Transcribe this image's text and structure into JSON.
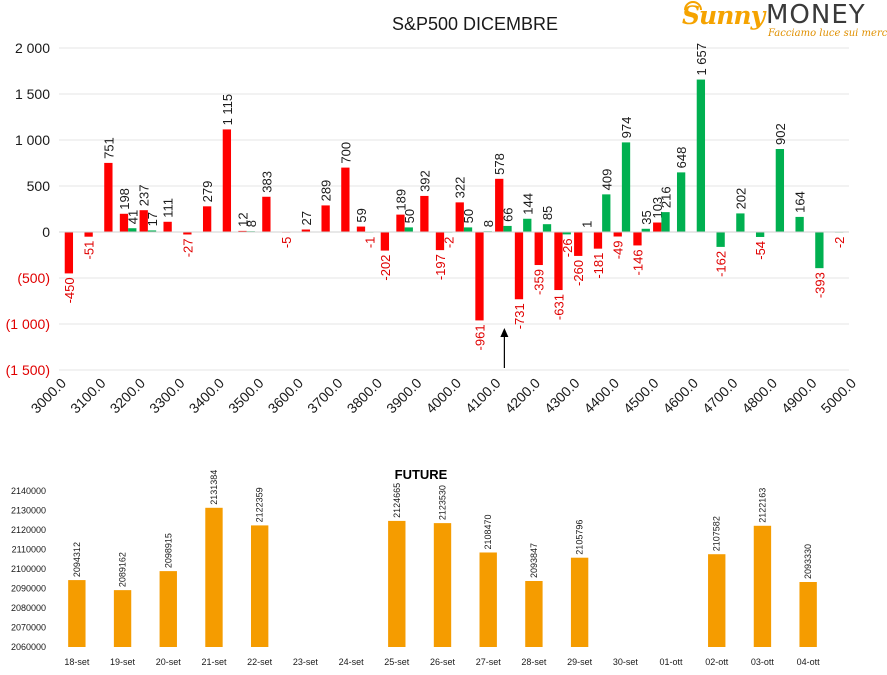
{
  "logo": {
    "brand_a": "Sunny",
    "brand_b": "MONEY",
    "tagline": "Facciamo luce sui mercati"
  },
  "colors": {
    "positive": "#00b050",
    "negative": "#ff0000",
    "future_bar": "#f59c00",
    "neg_label": "#e00000",
    "text": "#1a1a1a",
    "grid": "#e6e6e6"
  },
  "chart_data": [
    {
      "type": "bar",
      "title": "S&P500 DICEMBRE",
      "ylim": [
        -1500,
        2000
      ],
      "yticks": [
        -1500,
        -1000,
        -500,
        0,
        500,
        1000,
        1500,
        2000
      ],
      "ytick_labels": [
        "(1 500)",
        "(1 000)",
        "(500)",
        "0",
        "500",
        "1 000",
        "1 500",
        "2 000"
      ],
      "x_start": 3000,
      "x_step": 25,
      "xtick_labels": [
        "3000.0",
        "3100.0",
        "3200.0",
        "3300.0",
        "3400.0",
        "3500.0",
        "3600.0",
        "3700.0",
        "3800.0",
        "3900.0",
        "4000.0",
        "4100.0",
        "4200.0",
        "4300.0",
        "4400.0",
        "4500.0",
        "4600.0",
        "4700.0",
        "4800.0",
        "4900.0",
        "5000.0"
      ],
      "series": [
        {
          "color": "#ff0000",
          "values": [
            -450,
            -51,
            751,
            198,
            237,
            111,
            -27,
            279,
            1115,
            12,
            383,
            -5,
            27,
            289,
            700,
            59,
            -202,
            189,
            392,
            -197,
            322,
            -961,
            578,
            -731,
            -359,
            -631,
            -260,
            -181,
            -49,
            -146,
            103,
            null,
            null,
            null,
            null,
            null,
            null
          ]
        },
        {
          "color": "#00b050",
          "values": [
            null,
            null,
            null,
            41,
            17,
            null,
            null,
            null,
            null,
            8,
            null,
            null,
            null,
            null,
            null,
            -1,
            null,
            50,
            null,
            -2,
            50,
            8,
            66,
            144,
            85,
            -26,
            1,
            409,
            974,
            35,
            216,
            648,
            1657,
            -162,
            202,
            -54,
            902,
            164,
            -393,
            -2
          ]
        }
      ],
      "annotation": "arrow",
      "annotation_x_index": 22
    },
    {
      "type": "bar",
      "title": "FUTURE",
      "ylim": [
        2060000,
        2140000
      ],
      "yticks": [
        2060000,
        2070000,
        2080000,
        2090000,
        2100000,
        2110000,
        2120000,
        2130000,
        2140000
      ],
      "categories": [
        "18-set",
        "19-set",
        "20-set",
        "21-set",
        "22-set",
        "23-set",
        "24-set",
        "25-set",
        "26-set",
        "27-set",
        "28-set",
        "29-set",
        "30-set",
        "01-ott",
        "02-ott",
        "03-ott",
        "04-ott"
      ],
      "values": [
        2094312,
        2089162,
        2098915,
        2131384,
        2122359,
        null,
        null,
        2124665,
        2123530,
        2108470,
        2093847,
        2105796,
        null,
        null,
        2107582,
        2122163,
        2093330
      ]
    }
  ]
}
